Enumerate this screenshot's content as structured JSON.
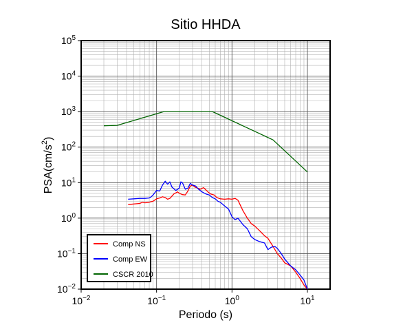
{
  "chart_data": {
    "type": "line",
    "title": "Sitio HHDA",
    "xlabel": "Periodo (s)",
    "ylabel_base": "PSA(cm/s",
    "ylabel_exp": "2",
    "ylabel_close": ")",
    "xscale": "log",
    "yscale": "log",
    "xlim": [
      0.01,
      20
    ],
    "ylim": [
      0.01,
      100000
    ],
    "grid": true,
    "legend_position": "bottom-left",
    "x_ticks": [
      {
        "value": 0.01,
        "base": "10",
        "exp": "−2"
      },
      {
        "value": 0.1,
        "base": "10",
        "exp": "−1"
      },
      {
        "value": 1,
        "base": "10",
        "exp": "0"
      },
      {
        "value": 10,
        "base": "10",
        "exp": "1"
      }
    ],
    "y_ticks": [
      {
        "value": 0.01,
        "base": "10",
        "exp": "−2"
      },
      {
        "value": 0.1,
        "base": "10",
        "exp": "−1"
      },
      {
        "value": 1,
        "base": "10",
        "exp": "0"
      },
      {
        "value": 10,
        "base": "10",
        "exp": "1"
      },
      {
        "value": 100,
        "base": "10",
        "exp": "2"
      },
      {
        "value": 1000,
        "base": "10",
        "exp": "3"
      },
      {
        "value": 10000,
        "base": "10",
        "exp": "4"
      },
      {
        "value": 100000,
        "base": "10",
        "exp": "5"
      }
    ],
    "series": [
      {
        "name": "Comp NS",
        "color": "#ff0000",
        "x": [
          0.042,
          0.05,
          0.06,
          0.065,
          0.07,
          0.08,
          0.09,
          0.1,
          0.11,
          0.12,
          0.13,
          0.14,
          0.15,
          0.17,
          0.19,
          0.2,
          0.22,
          0.24,
          0.26,
          0.28,
          0.3,
          0.32,
          0.35,
          0.38,
          0.42,
          0.48,
          0.52,
          0.58,
          0.63,
          0.7,
          0.8,
          0.9,
          1.0,
          1.05,
          1.1,
          1.2,
          1.4,
          1.6,
          1.8,
          2.0,
          2.3,
          2.7,
          3.0,
          3.5,
          4.0,
          4.5,
          5.0,
          5.5,
          6.0,
          7.0,
          8.0,
          9.0,
          10.0
        ],
        "y": [
          2.4,
          2.5,
          2.6,
          2.8,
          2.7,
          2.8,
          3.0,
          3.5,
          3.7,
          4.0,
          3.8,
          3.4,
          3.6,
          4.8,
          5.5,
          5.0,
          4.6,
          4.5,
          5.8,
          8.0,
          8.5,
          7.5,
          7.0,
          6.5,
          7.2,
          5.5,
          4.8,
          4.5,
          3.8,
          3.5,
          3.4,
          3.5,
          3.4,
          3.5,
          3.6,
          3.2,
          1.6,
          1.0,
          0.7,
          0.6,
          0.45,
          0.32,
          0.27,
          0.16,
          0.1,
          0.075,
          0.055,
          0.05,
          0.045,
          0.03,
          0.02,
          0.013,
          0.01
        ]
      },
      {
        "name": "Comp EW",
        "color": "#0000ff",
        "x": [
          0.042,
          0.05,
          0.06,
          0.07,
          0.08,
          0.085,
          0.09,
          0.1,
          0.11,
          0.12,
          0.13,
          0.14,
          0.15,
          0.16,
          0.18,
          0.2,
          0.21,
          0.22,
          0.24,
          0.26,
          0.28,
          0.3,
          0.33,
          0.36,
          0.4,
          0.45,
          0.5,
          0.55,
          0.6,
          0.65,
          0.7,
          0.8,
          0.9,
          1.0,
          1.1,
          1.2,
          1.4,
          1.6,
          1.8,
          2.0,
          2.3,
          2.7,
          3.0,
          3.3,
          3.7,
          4.0,
          4.5,
          5.0,
          6.0,
          7.0,
          8.0,
          9.0,
          10.0
        ],
        "y": [
          3.4,
          3.5,
          3.6,
          3.6,
          3.7,
          4.0,
          4.5,
          6.0,
          5.8,
          8.5,
          11.0,
          9.0,
          10.5,
          7.5,
          6.0,
          7.0,
          10.5,
          10.0,
          6.5,
          7.0,
          9.5,
          8.5,
          8.0,
          6.5,
          5.5,
          4.8,
          4.5,
          3.8,
          3.5,
          3.0,
          2.8,
          2.2,
          1.8,
          1.1,
          0.9,
          1.0,
          0.65,
          0.5,
          0.3,
          0.25,
          0.22,
          0.2,
          0.13,
          0.15,
          0.16,
          0.14,
          0.1,
          0.07,
          0.045,
          0.035,
          0.025,
          0.018,
          0.01
        ]
      },
      {
        "name": "CSCR 2010",
        "color": "#006400",
        "x": [
          0.02,
          0.03,
          0.125,
          0.55,
          3.5,
          10.0
        ],
        "y": [
          400,
          410,
          1000,
          1000,
          160,
          20
        ]
      }
    ]
  }
}
